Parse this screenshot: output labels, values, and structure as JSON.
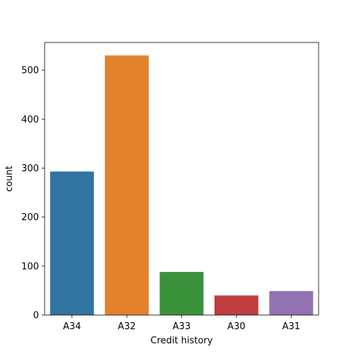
{
  "chart_data": {
    "type": "bar",
    "title": "",
    "xlabel": "Credit history",
    "ylabel": "count",
    "categories": [
      "A34",
      "A32",
      "A33",
      "A30",
      "A31"
    ],
    "values": [
      293,
      530,
      88,
      40,
      49
    ],
    "colors": [
      "#3274a1",
      "#e1812c",
      "#3a923a",
      "#c03d3e",
      "#9372b2"
    ],
    "ylim": [
      0,
      556.5
    ],
    "yticks": [
      0,
      100,
      200,
      300,
      400,
      500
    ],
    "grid": false,
    "legend": "none"
  }
}
